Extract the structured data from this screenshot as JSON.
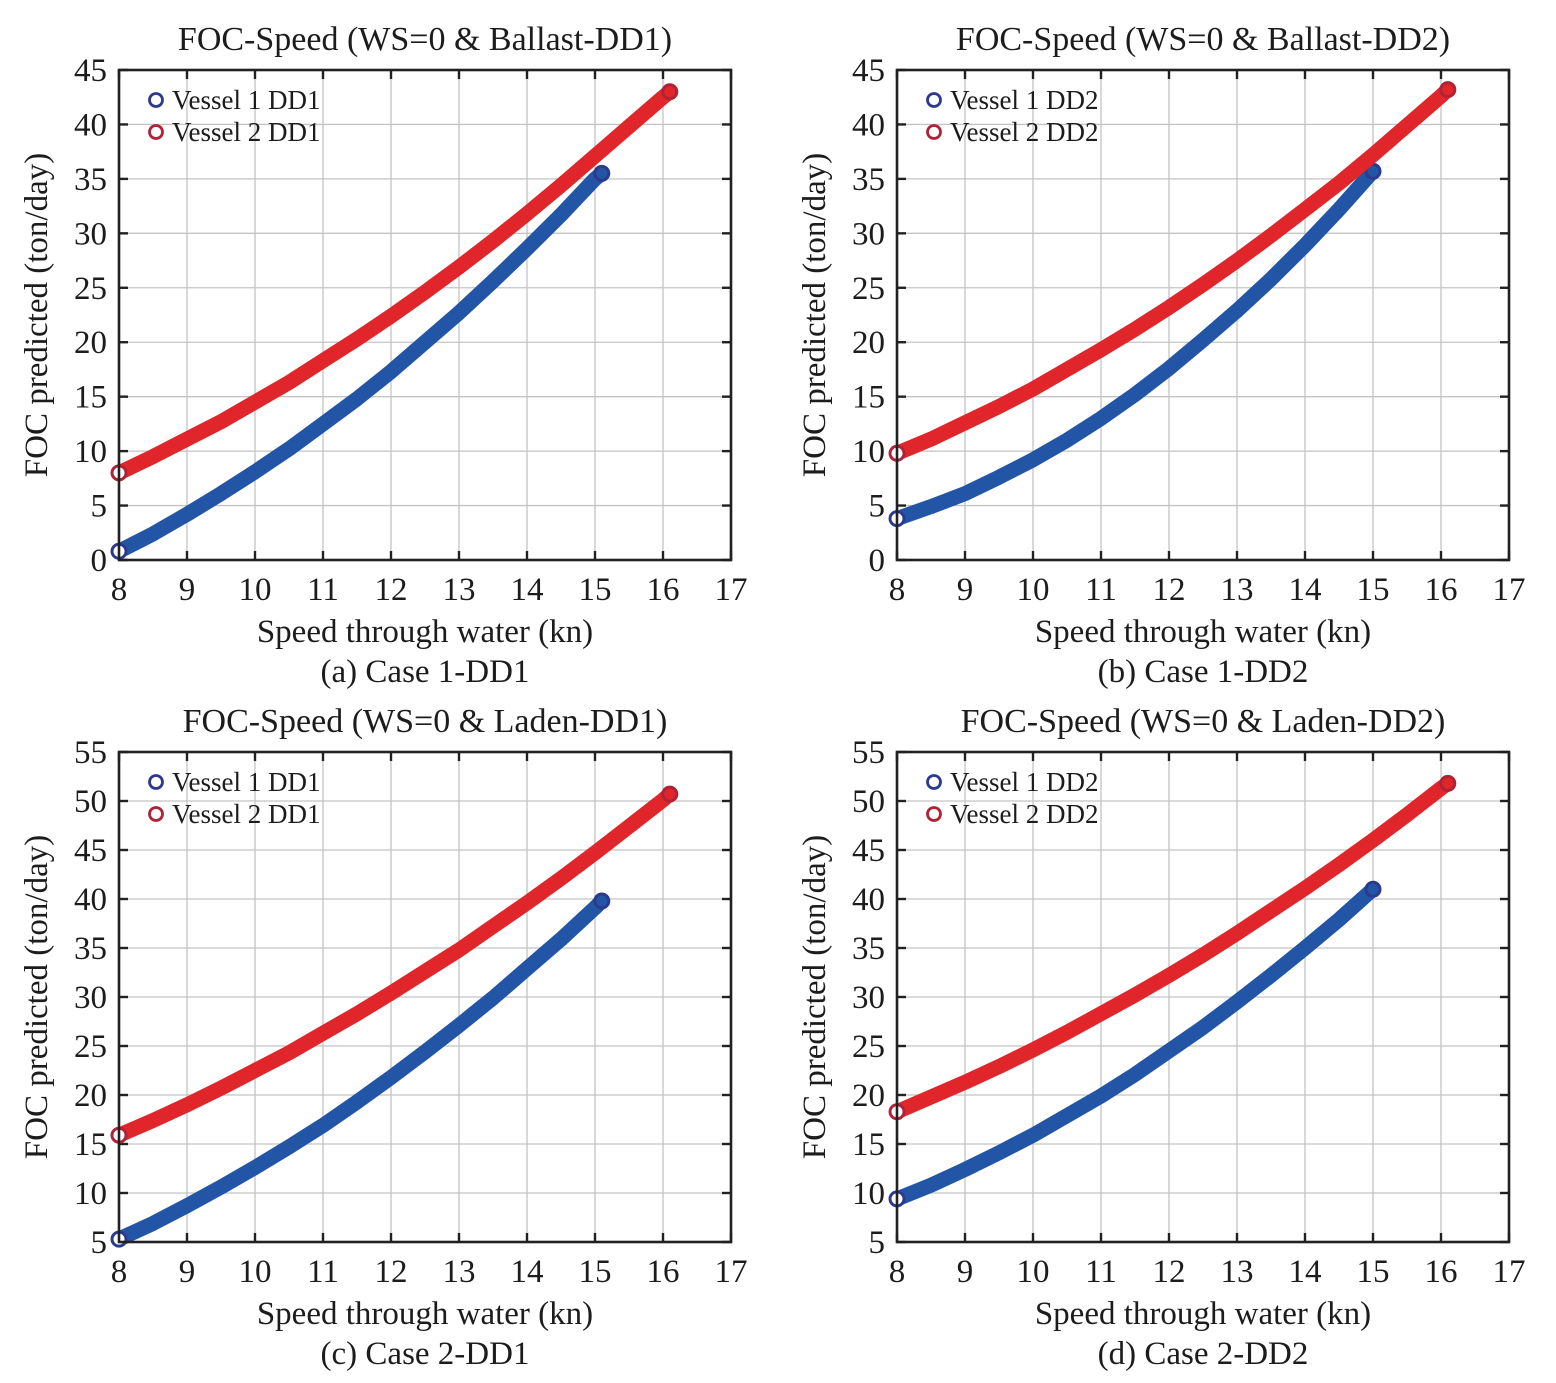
{
  "figure": {
    "background": "#ffffff",
    "colors": {
      "vessel1": "#2355a7",
      "vessel1_edge": "#2c3a8e",
      "vessel2": "#e0262b",
      "vessel2_edge": "#b02236",
      "grid": "#c4c4c4",
      "frame": "#212121",
      "text": "#1c1c1c"
    }
  },
  "chart_data": [
    {
      "type": "scatter",
      "title": "FOC-Speed (WS=0 & Ballast-DD1)",
      "caption": "(a) Case 1-DD1",
      "xlabel": "Speed through water (kn)",
      "ylabel": "FOC predicted (ton/day)",
      "xlim": [
        8,
        17
      ],
      "ylim": [
        0,
        45
      ],
      "xticks": [
        8,
        9,
        10,
        11,
        12,
        13,
        14,
        15,
        16,
        17
      ],
      "yticks": [
        0,
        5,
        10,
        15,
        20,
        25,
        30,
        35,
        40,
        45
      ],
      "grid": true,
      "legend_position": "top-left",
      "series": [
        {
          "name": "Vessel 1 DD1",
          "color_key": "vessel1",
          "x": [
            8,
            8.5,
            9,
            9.5,
            10,
            10.5,
            11,
            11.5,
            12,
            12.5,
            13,
            13.5,
            14,
            14.5,
            15,
            15.1
          ],
          "y": [
            0.8,
            2.4,
            4.2,
            6.1,
            8.1,
            10.2,
            12.5,
            14.8,
            17.3,
            20.0,
            22.7,
            25.6,
            28.6,
            31.7,
            35.0,
            35.5
          ]
        },
        {
          "name": "Vessel 2 DD1",
          "color_key": "vessel2",
          "x": [
            8,
            8.5,
            9,
            9.5,
            10,
            10.5,
            11,
            11.5,
            12,
            12.5,
            13,
            13.5,
            14,
            14.5,
            15,
            15.5,
            16,
            16.1
          ],
          "y": [
            8.0,
            9.5,
            11.1,
            12.7,
            14.5,
            16.3,
            18.3,
            20.3,
            22.4,
            24.6,
            26.9,
            29.3,
            31.8,
            34.4,
            37.1,
            39.8,
            42.5,
            43.0
          ]
        }
      ]
    },
    {
      "type": "scatter",
      "title": "FOC-Speed (WS=0 & Ballast-DD2)",
      "caption": "(b) Case 1-DD2",
      "xlabel": "Speed through water (kn)",
      "ylabel": "FOC predicted (ton/day)",
      "xlim": [
        8,
        17
      ],
      "ylim": [
        0,
        45
      ],
      "xticks": [
        8,
        9,
        10,
        11,
        12,
        13,
        14,
        15,
        16,
        17
      ],
      "yticks": [
        0,
        5,
        10,
        15,
        20,
        25,
        30,
        35,
        40,
        45
      ],
      "grid": true,
      "legend_position": "top-left",
      "series": [
        {
          "name": "Vessel 1 DD2",
          "color_key": "vessel1",
          "x": [
            8,
            8.5,
            9,
            9.5,
            10,
            10.5,
            11,
            11.5,
            12,
            12.5,
            13,
            13.5,
            14,
            14.5,
            15
          ],
          "y": [
            3.8,
            4.9,
            6.1,
            7.6,
            9.2,
            11.0,
            13.0,
            15.2,
            17.6,
            20.2,
            22.9,
            25.8,
            28.9,
            32.2,
            35.7
          ]
        },
        {
          "name": "Vessel 2 DD2",
          "color_key": "vessel2",
          "x": [
            8,
            8.5,
            9,
            9.5,
            10,
            10.5,
            11,
            11.5,
            12,
            12.5,
            13,
            13.5,
            14,
            14.5,
            15,
            15.5,
            16,
            16.1
          ],
          "y": [
            9.8,
            11.1,
            12.6,
            14.1,
            15.7,
            17.5,
            19.3,
            21.2,
            23.2,
            25.3,
            27.5,
            29.8,
            32.2,
            34.6,
            37.2,
            39.9,
            42.6,
            43.2
          ]
        }
      ]
    },
    {
      "type": "scatter",
      "title": "FOC-Speed (WS=0 & Laden-DD1)",
      "caption": "(c) Case 2-DD1",
      "xlabel": "Speed through water (kn)",
      "ylabel": "FOC predicted (ton/day)",
      "xlim": [
        8,
        17
      ],
      "ylim": [
        5,
        55
      ],
      "xticks": [
        8,
        9,
        10,
        11,
        12,
        13,
        14,
        15,
        16,
        17
      ],
      "yticks": [
        5,
        10,
        15,
        20,
        25,
        30,
        35,
        40,
        45,
        50,
        55
      ],
      "grid": true,
      "legend_position": "top-left",
      "series": [
        {
          "name": "Vessel 1 DD1",
          "color_key": "vessel1",
          "x": [
            8,
            8.5,
            9,
            9.5,
            10,
            10.5,
            11,
            11.5,
            12,
            12.5,
            13,
            13.5,
            14,
            14.5,
            15,
            15.1
          ],
          "y": [
            5.3,
            6.9,
            8.7,
            10.6,
            12.6,
            14.7,
            16.9,
            19.3,
            21.8,
            24.4,
            27.1,
            29.9,
            32.9,
            35.9,
            39.1,
            39.8
          ]
        },
        {
          "name": "Vessel 2 DD1",
          "color_key": "vessel2",
          "x": [
            8,
            8.5,
            9,
            9.5,
            10,
            10.5,
            11,
            11.5,
            12,
            12.5,
            13,
            13.5,
            14,
            14.5,
            15,
            15.5,
            16,
            16.1
          ],
          "y": [
            15.9,
            17.4,
            19.0,
            20.7,
            22.5,
            24.3,
            26.3,
            28.3,
            30.4,
            32.6,
            34.8,
            37.2,
            39.6,
            42.1,
            44.7,
            47.4,
            50.1,
            50.7
          ]
        }
      ]
    },
    {
      "type": "scatter",
      "title": "FOC-Speed (WS=0 & Laden-DD2)",
      "caption": "(d) Case 2-DD2",
      "xlabel": "Speed through water (kn)",
      "ylabel": "FOC predicted (ton/day)",
      "xlim": [
        8,
        17
      ],
      "ylim": [
        5,
        55
      ],
      "xticks": [
        8,
        9,
        10,
        11,
        12,
        13,
        14,
        15,
        16,
        17
      ],
      "yticks": [
        5,
        10,
        15,
        20,
        25,
        30,
        35,
        40,
        45,
        50,
        55
      ],
      "grid": true,
      "legend_position": "top-left",
      "series": [
        {
          "name": "Vessel 1 DD2",
          "color_key": "vessel1",
          "x": [
            8,
            8.5,
            9,
            9.5,
            10,
            10.5,
            11,
            11.5,
            12,
            12.5,
            13,
            13.5,
            14,
            14.5,
            15
          ],
          "y": [
            9.4,
            10.8,
            12.4,
            14.1,
            15.9,
            17.9,
            19.9,
            22.1,
            24.5,
            26.9,
            29.5,
            32.2,
            35.0,
            37.9,
            41.0
          ]
        },
        {
          "name": "Vessel 2 DD2",
          "color_key": "vessel2",
          "x": [
            8,
            8.5,
            9,
            9.5,
            10,
            10.5,
            11,
            11.5,
            12,
            12.5,
            13,
            13.5,
            14,
            14.5,
            15,
            15.5,
            16,
            16.1
          ],
          "y": [
            18.3,
            19.8,
            21.3,
            22.9,
            24.6,
            26.4,
            28.3,
            30.2,
            32.2,
            34.3,
            36.5,
            38.8,
            41.1,
            43.5,
            46.0,
            48.6,
            51.3,
            51.8
          ]
        }
      ]
    }
  ]
}
